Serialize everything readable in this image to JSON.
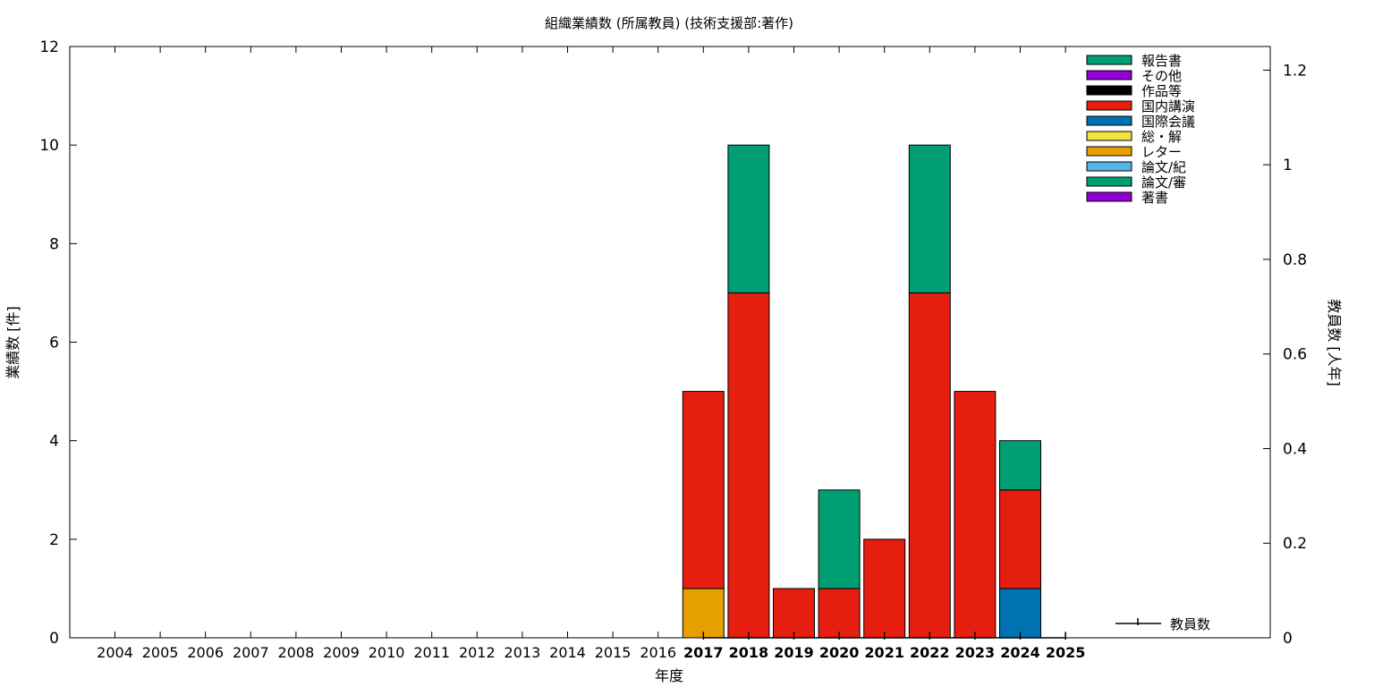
{
  "chart_data": {
    "type": "bar",
    "title": "組織業績数 (所属教員) (技術支援部:著作)",
    "xlabel": "年度",
    "ylabel": "業績数 [件]",
    "y2label": "教員数 [人年]",
    "categories": [
      "2004",
      "2005",
      "2006",
      "2007",
      "2008",
      "2009",
      "2010",
      "2011",
      "2012",
      "2013",
      "2014",
      "2015",
      "2016",
      "2017",
      "2018",
      "2019",
      "2020",
      "2021",
      "2022",
      "2023",
      "2024",
      "2025"
    ],
    "bold_categories": [
      "2017",
      "2018",
      "2019",
      "2020",
      "2021",
      "2022",
      "2023",
      "2024",
      "2025"
    ],
    "ylim": [
      0,
      12
    ],
    "yticks": [
      0,
      2,
      4,
      6,
      8,
      10,
      12
    ],
    "y2lim": [
      0,
      1.25
    ],
    "y2ticks": [
      0,
      0.2,
      0.4,
      0.6,
      0.8,
      1,
      1.2
    ],
    "y2tick_labels": [
      "0",
      "0.2",
      "0.4",
      "0.6",
      "0.8",
      "1",
      "1.2"
    ],
    "stacked": true,
    "legend_position": "top-right",
    "series": [
      {
        "name": "著書",
        "color": "#9400d3",
        "values": [
          0,
          0,
          0,
          0,
          0,
          0,
          0,
          0,
          0,
          0,
          0,
          0,
          0,
          0,
          0,
          0,
          0,
          0,
          0,
          0,
          0,
          0
        ]
      },
      {
        "name": "論文/審",
        "color": "#009e73",
        "values": [
          0,
          0,
          0,
          0,
          0,
          0,
          0,
          0,
          0,
          0,
          0,
          0,
          0,
          0,
          0,
          0,
          0,
          0,
          0,
          0,
          0,
          0
        ]
      },
      {
        "name": "論文/紀",
        "color": "#56b4e9",
        "values": [
          0,
          0,
          0,
          0,
          0,
          0,
          0,
          0,
          0,
          0,
          0,
          0,
          0,
          0,
          0,
          0,
          0,
          0,
          0,
          0,
          0,
          0
        ]
      },
      {
        "name": "レター",
        "color": "#e69f00",
        "values": [
          0,
          0,
          0,
          0,
          0,
          0,
          0,
          0,
          0,
          0,
          0,
          0,
          0,
          1,
          0,
          0,
          0,
          0,
          0,
          0,
          0,
          0
        ]
      },
      {
        "name": "総・解",
        "color": "#f0e442",
        "values": [
          0,
          0,
          0,
          0,
          0,
          0,
          0,
          0,
          0,
          0,
          0,
          0,
          0,
          0,
          0,
          0,
          0,
          0,
          0,
          0,
          0,
          0
        ]
      },
      {
        "name": "国際会議",
        "color": "#0072b2",
        "values": [
          0,
          0,
          0,
          0,
          0,
          0,
          0,
          0,
          0,
          0,
          0,
          0,
          0,
          0,
          0,
          0,
          0,
          0,
          0,
          0,
          1,
          0
        ]
      },
      {
        "name": "国内講演",
        "color": "#e51e10",
        "values": [
          0,
          0,
          0,
          0,
          0,
          0,
          0,
          0,
          0,
          0,
          0,
          0,
          0,
          4,
          7,
          1,
          1,
          2,
          7,
          5,
          2,
          0
        ]
      },
      {
        "name": "作品等",
        "color": "#000000",
        "values": [
          0,
          0,
          0,
          0,
          0,
          0,
          0,
          0,
          0,
          0,
          0,
          0,
          0,
          0,
          0,
          0,
          0,
          0,
          0,
          0,
          0,
          0
        ]
      },
      {
        "name": "その他",
        "color": "#9400d3",
        "values": [
          0,
          0,
          0,
          0,
          0,
          0,
          0,
          0,
          0,
          0,
          0,
          0,
          0,
          0,
          0,
          0,
          0,
          0,
          0,
          0,
          0,
          0
        ]
      },
      {
        "name": "報告書",
        "color": "#009e73",
        "values": [
          0,
          0,
          0,
          0,
          0,
          0,
          0,
          0,
          0,
          0,
          0,
          0,
          0,
          0,
          3,
          0,
          2,
          0,
          3,
          0,
          1,
          0
        ]
      }
    ],
    "line_series": {
      "name": "教員数",
      "axis": "y2",
      "color": "#000000",
      "x": [
        "2017",
        "2018",
        "2019",
        "2020",
        "2021",
        "2022",
        "2023",
        "2024",
        "2025"
      ],
      "values": [
        0,
        0,
        0,
        0,
        0,
        0,
        0,
        0,
        0
      ]
    }
  }
}
